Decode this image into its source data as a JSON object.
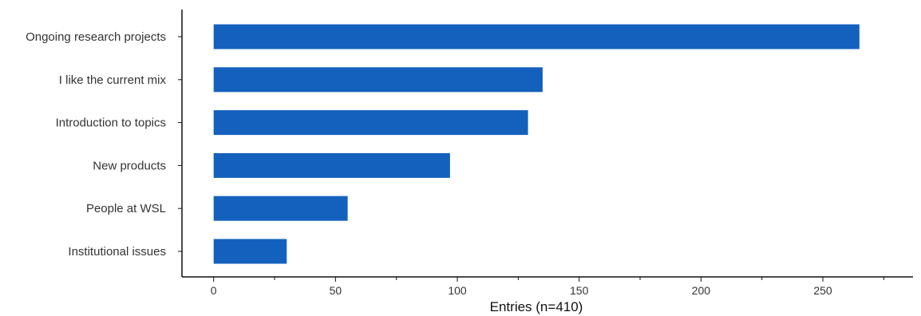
{
  "chart_data": {
    "type": "bar",
    "orientation": "horizontal",
    "categories": [
      "Ongoing research projects",
      "I like the current mix",
      "Introduction to topics",
      "New products",
      "People at WSL",
      "Institutional issues"
    ],
    "values": [
      265,
      135,
      129,
      97,
      55,
      30
    ],
    "xlabel": "Entries (n=410)",
    "ylabel": "",
    "xlim": [
      -13,
      287
    ],
    "xticks": [
      0,
      50,
      100,
      150,
      200,
      250
    ],
    "minor_xticks": [
      25,
      75,
      125,
      175,
      225,
      275
    ],
    "grid": false,
    "legend": false,
    "bar_color": "#1461bd"
  }
}
